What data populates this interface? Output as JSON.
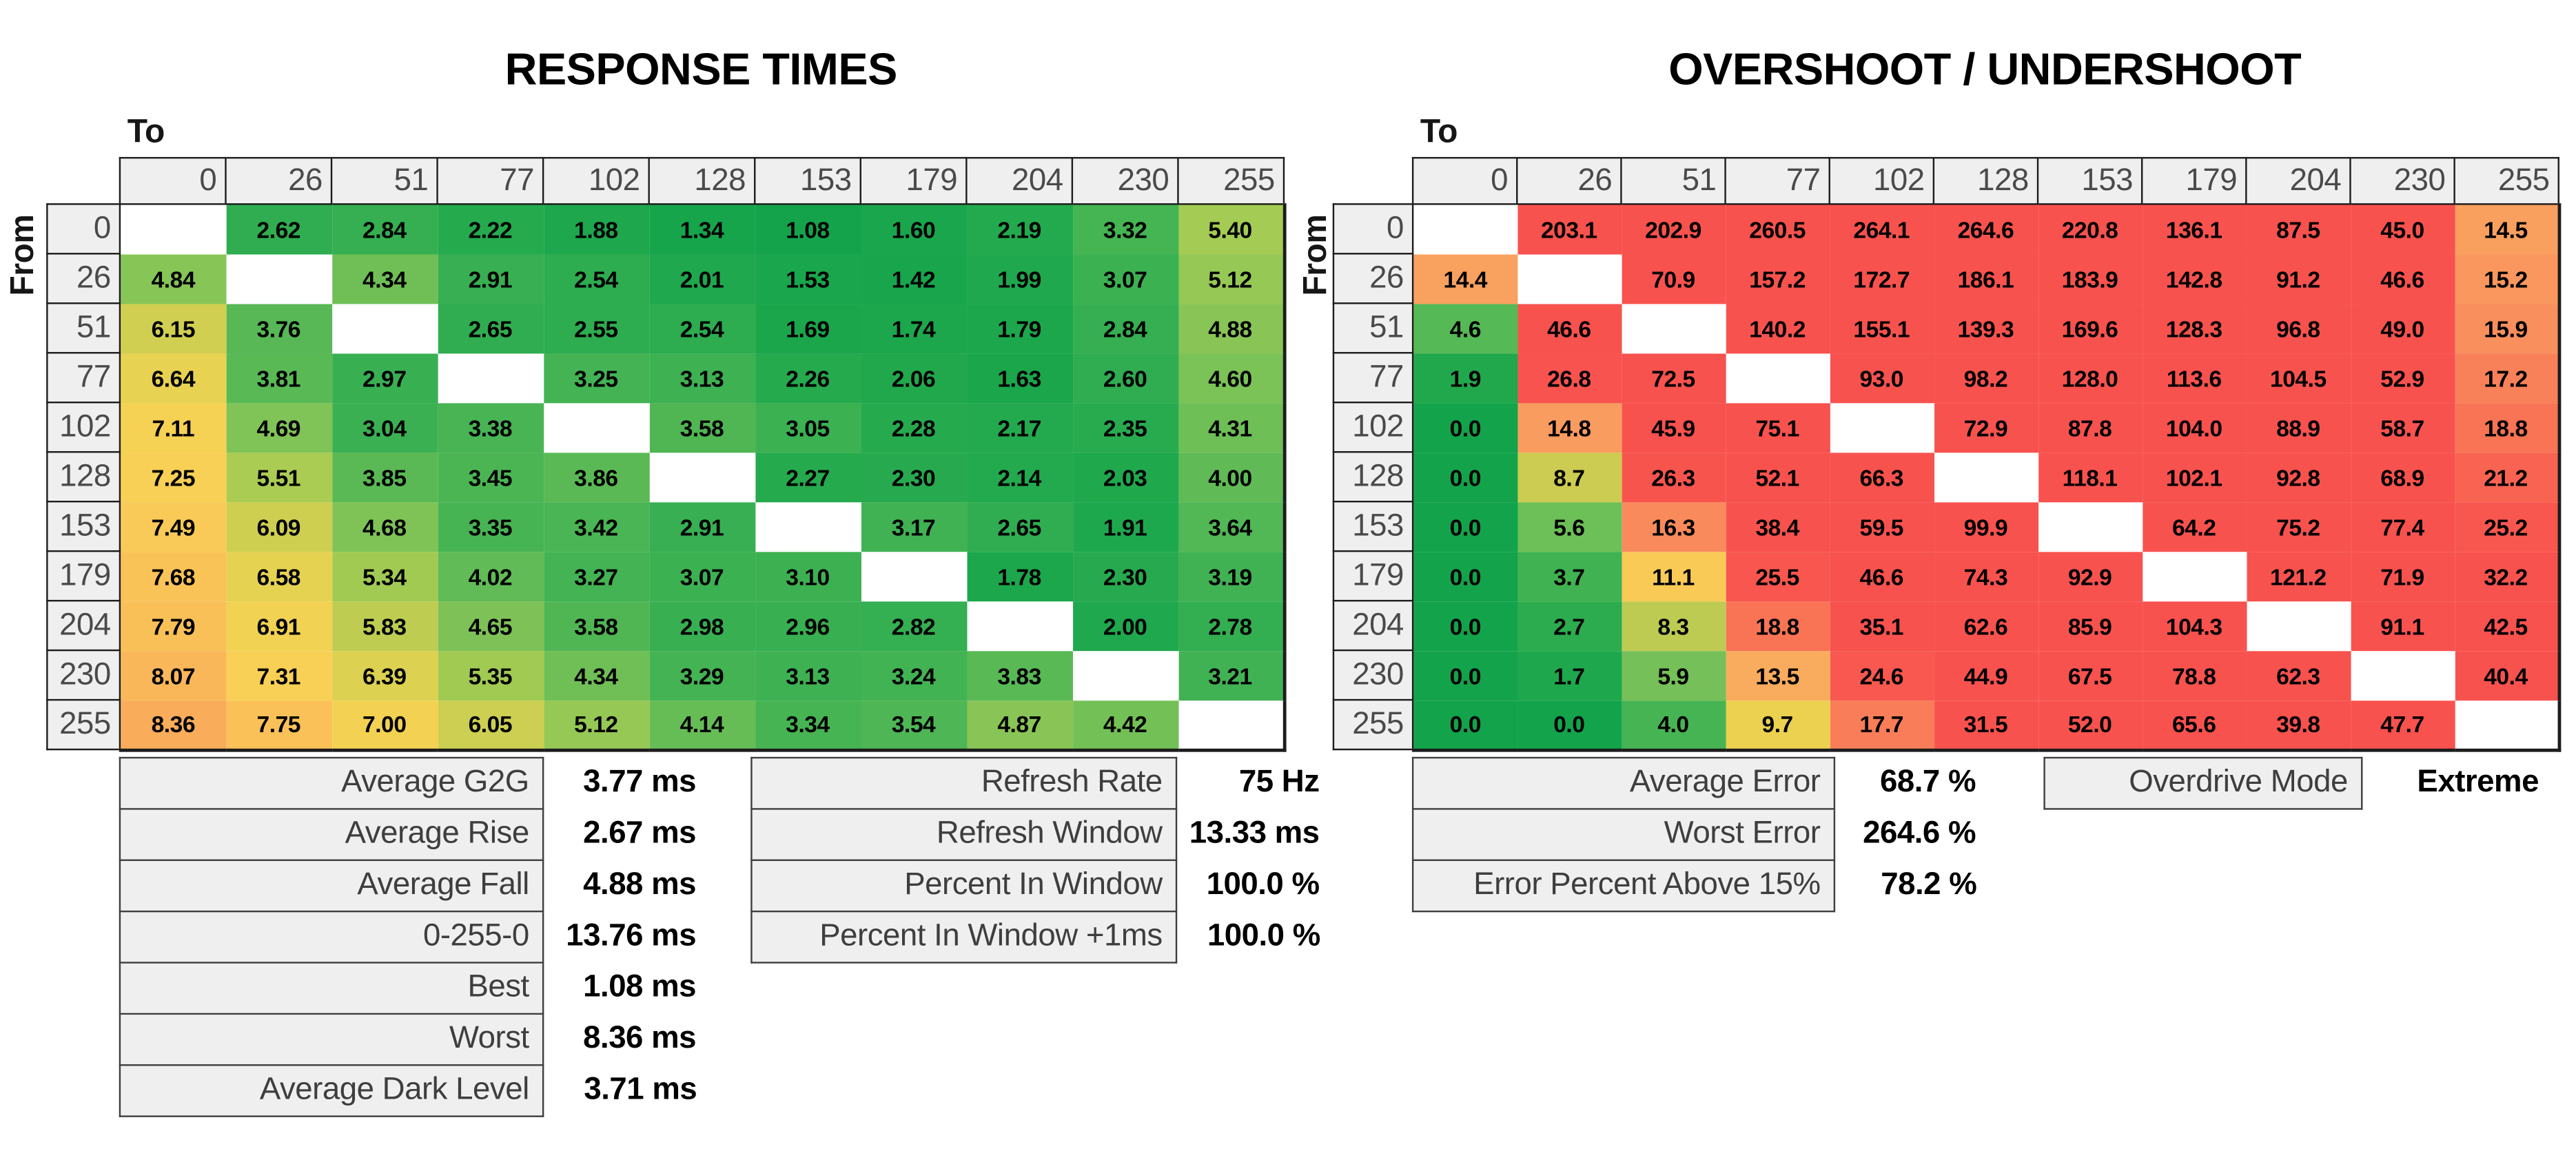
{
  "chart_data": [
    {
      "type": "heatmap",
      "title": "RESPONSE TIMES",
      "xlabel": "To",
      "ylabel": "From",
      "unit": "ms",
      "categories": [
        "0",
        "26",
        "51",
        "77",
        "102",
        "128",
        "153",
        "179",
        "204",
        "230",
        "255"
      ],
      "rows": [
        [
          null,
          "2.62",
          "2.84",
          "2.22",
          "1.88",
          "1.34",
          "1.08",
          "1.60",
          "2.19",
          "3.32",
          "5.40"
        ],
        [
          "4.84",
          null,
          "4.34",
          "2.91",
          "2.54",
          "2.01",
          "1.53",
          "1.42",
          "1.99",
          "3.07",
          "5.12"
        ],
        [
          "6.15",
          "3.76",
          null,
          "2.65",
          "2.55",
          "2.54",
          "1.69",
          "1.74",
          "1.79",
          "2.84",
          "4.88"
        ],
        [
          "6.64",
          "3.81",
          "2.97",
          null,
          "3.25",
          "3.13",
          "2.26",
          "2.06",
          "1.63",
          "2.60",
          "4.60"
        ],
        [
          "7.11",
          "4.69",
          "3.04",
          "3.38",
          null,
          "3.58",
          "3.05",
          "2.28",
          "2.17",
          "2.35",
          "4.31"
        ],
        [
          "7.25",
          "5.51",
          "3.85",
          "3.45",
          "3.86",
          null,
          "2.27",
          "2.30",
          "2.14",
          "2.03",
          "4.00"
        ],
        [
          "7.49",
          "6.09",
          "4.68",
          "3.35",
          "3.42",
          "2.91",
          null,
          "3.17",
          "2.65",
          "1.91",
          "3.64"
        ],
        [
          "7.68",
          "6.58",
          "5.34",
          "4.02",
          "3.27",
          "3.07",
          "3.10",
          null,
          "1.78",
          "2.30",
          "3.19"
        ],
        [
          "7.79",
          "6.91",
          "5.83",
          "4.65",
          "3.58",
          "2.98",
          "2.96",
          "2.82",
          null,
          "2.00",
          "2.78"
        ],
        [
          "8.07",
          "7.31",
          "6.39",
          "5.35",
          "4.34",
          "3.29",
          "3.13",
          "3.24",
          "3.83",
          null,
          "3.21"
        ],
        [
          "8.36",
          "7.75",
          "7.00",
          "6.05",
          "5.12",
          "4.14",
          "3.34",
          "3.54",
          "4.87",
          "4.42",
          null
        ]
      ],
      "color_scale": {
        "nan_color": "#FFFFFF",
        "stops": [
          [
            1.0,
            "#13A34B"
          ],
          [
            2.0,
            "#1FA84D"
          ],
          [
            3.0,
            "#39B052"
          ],
          [
            4.0,
            "#60BB56"
          ],
          [
            4.7,
            "#80C357"
          ],
          [
            5.4,
            "#A4CB53"
          ],
          [
            6.1,
            "#CFCF51"
          ],
          [
            6.8,
            "#EFD351"
          ],
          [
            7.3,
            "#F9D056"
          ],
          [
            7.9,
            "#FABC59"
          ],
          [
            8.5,
            "#F9A95C"
          ]
        ]
      }
    },
    {
      "type": "heatmap",
      "title": "OVERSHOOT / UNDERSHOOT",
      "xlabel": "To",
      "ylabel": "From",
      "unit": "%",
      "categories": [
        "0",
        "26",
        "51",
        "77",
        "102",
        "128",
        "153",
        "179",
        "204",
        "230",
        "255"
      ],
      "rows": [
        [
          null,
          "203.1",
          "202.9",
          "260.5",
          "264.1",
          "264.6",
          "220.8",
          "136.1",
          "87.5",
          "45.0",
          "14.5"
        ],
        [
          "14.4",
          null,
          "70.9",
          "157.2",
          "172.7",
          "186.1",
          "183.9",
          "142.8",
          "91.2",
          "46.6",
          "15.2"
        ],
        [
          "4.6",
          "46.6",
          null,
          "140.2",
          "155.1",
          "139.3",
          "169.6",
          "128.3",
          "96.8",
          "49.0",
          "15.9"
        ],
        [
          "1.9",
          "26.8",
          "72.5",
          null,
          "93.0",
          "98.2",
          "128.0",
          "113.6",
          "104.5",
          "52.9",
          "17.2"
        ],
        [
          "0.0",
          "14.8",
          "45.9",
          "75.1",
          null,
          "72.9",
          "87.8",
          "104.0",
          "88.9",
          "58.7",
          "18.8"
        ],
        [
          "0.0",
          "8.7",
          "26.3",
          "52.1",
          "66.3",
          null,
          "118.1",
          "102.1",
          "92.8",
          "68.9",
          "21.2"
        ],
        [
          "0.0",
          "5.6",
          "16.3",
          "38.4",
          "59.5",
          "99.9",
          null,
          "64.2",
          "75.2",
          "77.4",
          "25.2"
        ],
        [
          "0.0",
          "3.7",
          "11.1",
          "25.5",
          "46.6",
          "74.3",
          "92.9",
          null,
          "121.2",
          "71.9",
          "32.2"
        ],
        [
          "0.0",
          "2.7",
          "8.3",
          "18.8",
          "35.1",
          "62.6",
          "85.9",
          "104.3",
          null,
          "91.1",
          "42.5"
        ],
        [
          "0.0",
          "1.7",
          "5.9",
          "13.5",
          "24.6",
          "44.9",
          "67.5",
          "78.8",
          "62.3",
          null,
          "40.4"
        ],
        [
          "0.0",
          "0.0",
          "4.0",
          "9.7",
          "17.7",
          "31.5",
          "52.0",
          "65.6",
          "39.8",
          "47.7",
          null
        ]
      ],
      "color_scale": {
        "nan_color": "#FFFFFF",
        "stops": [
          [
            0,
            "#13A34B"
          ],
          [
            1.5,
            "#1BA64C"
          ],
          [
            3,
            "#30AD4F"
          ],
          [
            4.5,
            "#53B855"
          ],
          [
            6,
            "#77C158"
          ],
          [
            7.5,
            "#A3CA55"
          ],
          [
            8.7,
            "#CCCB52"
          ],
          [
            9.7,
            "#ECD150"
          ],
          [
            11,
            "#FACB57"
          ],
          [
            12.5,
            "#F9B55C"
          ],
          [
            14.5,
            "#F9A05F"
          ],
          [
            16.5,
            "#F8875C"
          ],
          [
            18.5,
            "#F87656"
          ],
          [
            21,
            "#F86551"
          ],
          [
            24,
            "#F85A4F"
          ],
          [
            27,
            "#F8524E"
          ]
        ]
      }
    }
  ],
  "summary_tables": {
    "response": {
      "rows": [
        {
          "label": "Average G2G",
          "value": "3.77 ms"
        },
        {
          "label": "Average Rise",
          "value": "2.67 ms"
        },
        {
          "label": "Average Fall",
          "value": "4.88 ms"
        },
        {
          "label": "0-255-0",
          "value": "13.76 ms"
        },
        {
          "label": "Best",
          "value": "1.08 ms"
        },
        {
          "label": "Worst",
          "value": "8.36 ms"
        },
        {
          "label": "Average Dark Level",
          "value": "3.71 ms"
        }
      ]
    },
    "refresh": {
      "rows": [
        {
          "label": "Refresh Rate",
          "value": "75 Hz"
        },
        {
          "label": "Refresh Window",
          "value": "13.33 ms"
        },
        {
          "label": "Percent In Window",
          "value": "100.0 %"
        },
        {
          "label": "Percent In Window +1ms",
          "value": "100.0 %"
        }
      ]
    },
    "error": {
      "rows": [
        {
          "label": "Average Error",
          "value": "68.7 %"
        },
        {
          "label": "Worst Error",
          "value": "264.6 %"
        },
        {
          "label": "Error Percent Above 15%",
          "value": "78.2 %"
        }
      ]
    },
    "overdrive": {
      "label": "Overdrive Mode",
      "value": "Extreme"
    }
  },
  "colors": {
    "background": "#FFFFFF",
    "header_bg": "#EFEFEF",
    "header_text": "#4A4A4C",
    "cell_text": "#000000",
    "good_green": "#13A34B",
    "bad_red": "#F8524E",
    "warn_orange": "#F9A05F",
    "mid_yellow": "#ECD150"
  }
}
